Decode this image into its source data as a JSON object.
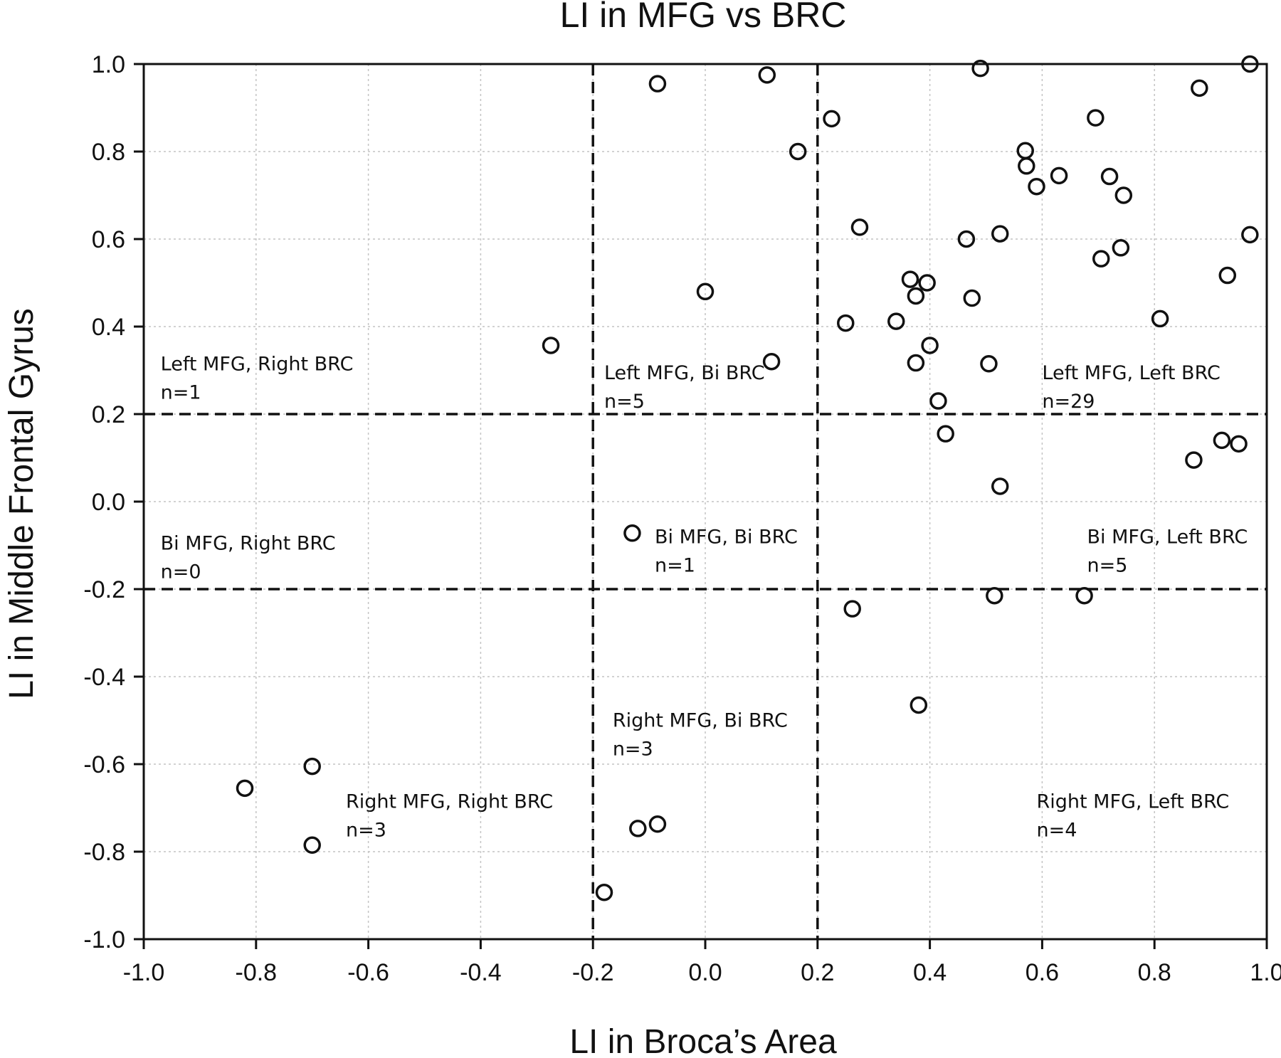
{
  "chart_data": {
    "type": "scatter",
    "title": "LI in MFG vs BRC",
    "xlabel": "LI in Broca’s Area",
    "ylabel": "LI in Middle Frontal Gyrus",
    "xlim": [
      -1.0,
      1.0
    ],
    "ylim": [
      -1.0,
      1.0
    ],
    "xticks": [
      "-1.0",
      "-0.8",
      "-0.6",
      "-0.4",
      "-0.2",
      "0.0",
      "0.2",
      "0.4",
      "0.6",
      "0.8",
      "1.0"
    ],
    "yticks": [
      "1.0",
      "0.8",
      "0.6",
      "0.4",
      "0.2",
      "0.0",
      "-0.2",
      "-0.4",
      "-0.6",
      "-0.8",
      "-1.0"
    ],
    "grid": true,
    "thresholds": {
      "x": [
        -0.2,
        0.2
      ],
      "y": [
        -0.2,
        0.2
      ]
    },
    "annotations": [
      {
        "lines": [
          "Left MFG, Right BRC",
          "n=1"
        ],
        "x": -0.97,
        "y": 0.3
      },
      {
        "lines": [
          "Left MFG, Bi BRC",
          "n=5"
        ],
        "x": -0.18,
        "y": 0.28
      },
      {
        "lines": [
          "Left MFG, Left BRC",
          "n=29"
        ],
        "x": 0.6,
        "y": 0.28
      },
      {
        "lines": [
          "Bi MFG, Right BRC",
          "n=0"
        ],
        "x": -0.97,
        "y": -0.11
      },
      {
        "lines": [
          "Bi MFG, Bi BRC",
          "n=1"
        ],
        "x": -0.09,
        "y": -0.095
      },
      {
        "lines": [
          "Bi MFG, Left BRC",
          "n=5"
        ],
        "x": 0.68,
        "y": -0.095
      },
      {
        "lines": [
          "Right MFG, Bi BRC",
          "n=3"
        ],
        "x": -0.165,
        "y": -0.515
      },
      {
        "lines": [
          "Right MFG, Right BRC",
          "n=3"
        ],
        "x": -0.64,
        "y": -0.7
      },
      {
        "lines": [
          "Right MFG, Left BRC",
          "n=4"
        ],
        "x": 0.59,
        "y": -0.7
      }
    ],
    "points": [
      {
        "x": 0.97,
        "y": 1.0
      },
      {
        "x": 0.49,
        "y": 0.99
      },
      {
        "x": 0.11,
        "y": 0.975
      },
      {
        "x": -0.085,
        "y": 0.955
      },
      {
        "x": 0.88,
        "y": 0.945
      },
      {
        "x": 0.225,
        "y": 0.875
      },
      {
        "x": 0.695,
        "y": 0.877
      },
      {
        "x": 0.165,
        "y": 0.8
      },
      {
        "x": 0.57,
        "y": 0.802
      },
      {
        "x": 0.572,
        "y": 0.767
      },
      {
        "x": 0.63,
        "y": 0.745
      },
      {
        "x": 0.72,
        "y": 0.743
      },
      {
        "x": 0.59,
        "y": 0.72
      },
      {
        "x": 0.745,
        "y": 0.7
      },
      {
        "x": 0.275,
        "y": 0.627
      },
      {
        "x": 0.525,
        "y": 0.612
      },
      {
        "x": 0.97,
        "y": 0.61
      },
      {
        "x": 0.465,
        "y": 0.6
      },
      {
        "x": 0.74,
        "y": 0.58
      },
      {
        "x": 0.705,
        "y": 0.555
      },
      {
        "x": 0.93,
        "y": 0.517
      },
      {
        "x": 0.365,
        "y": 0.508
      },
      {
        "x": 0.395,
        "y": 0.5
      },
      {
        "x": 0.0,
        "y": 0.48
      },
      {
        "x": 0.375,
        "y": 0.47
      },
      {
        "x": 0.475,
        "y": 0.465
      },
      {
        "x": 0.81,
        "y": 0.418
      },
      {
        "x": 0.34,
        "y": 0.412
      },
      {
        "x": 0.25,
        "y": 0.408
      },
      {
        "x": -0.275,
        "y": 0.357
      },
      {
        "x": 0.4,
        "y": 0.357
      },
      {
        "x": 0.118,
        "y": 0.32
      },
      {
        "x": 0.375,
        "y": 0.317
      },
      {
        "x": 0.505,
        "y": 0.315
      },
      {
        "x": 0.415,
        "y": 0.23
      },
      {
        "x": 0.428,
        "y": 0.155
      },
      {
        "x": 0.92,
        "y": 0.14
      },
      {
        "x": 0.95,
        "y": 0.132
      },
      {
        "x": 0.87,
        "y": 0.095
      },
      {
        "x": 0.525,
        "y": 0.035
      },
      {
        "x": -0.13,
        "y": -0.072
      },
      {
        "x": 0.515,
        "y": -0.215
      },
      {
        "x": 0.675,
        "y": -0.215
      },
      {
        "x": 0.262,
        "y": -0.245
      },
      {
        "x": 0.38,
        "y": -0.465
      },
      {
        "x": -0.7,
        "y": -0.605
      },
      {
        "x": -0.82,
        "y": -0.655
      },
      {
        "x": -0.7,
        "y": -0.785
      },
      {
        "x": -0.085,
        "y": -0.737
      },
      {
        "x": -0.12,
        "y": -0.747
      },
      {
        "x": -0.18,
        "y": -0.893
      }
    ]
  }
}
